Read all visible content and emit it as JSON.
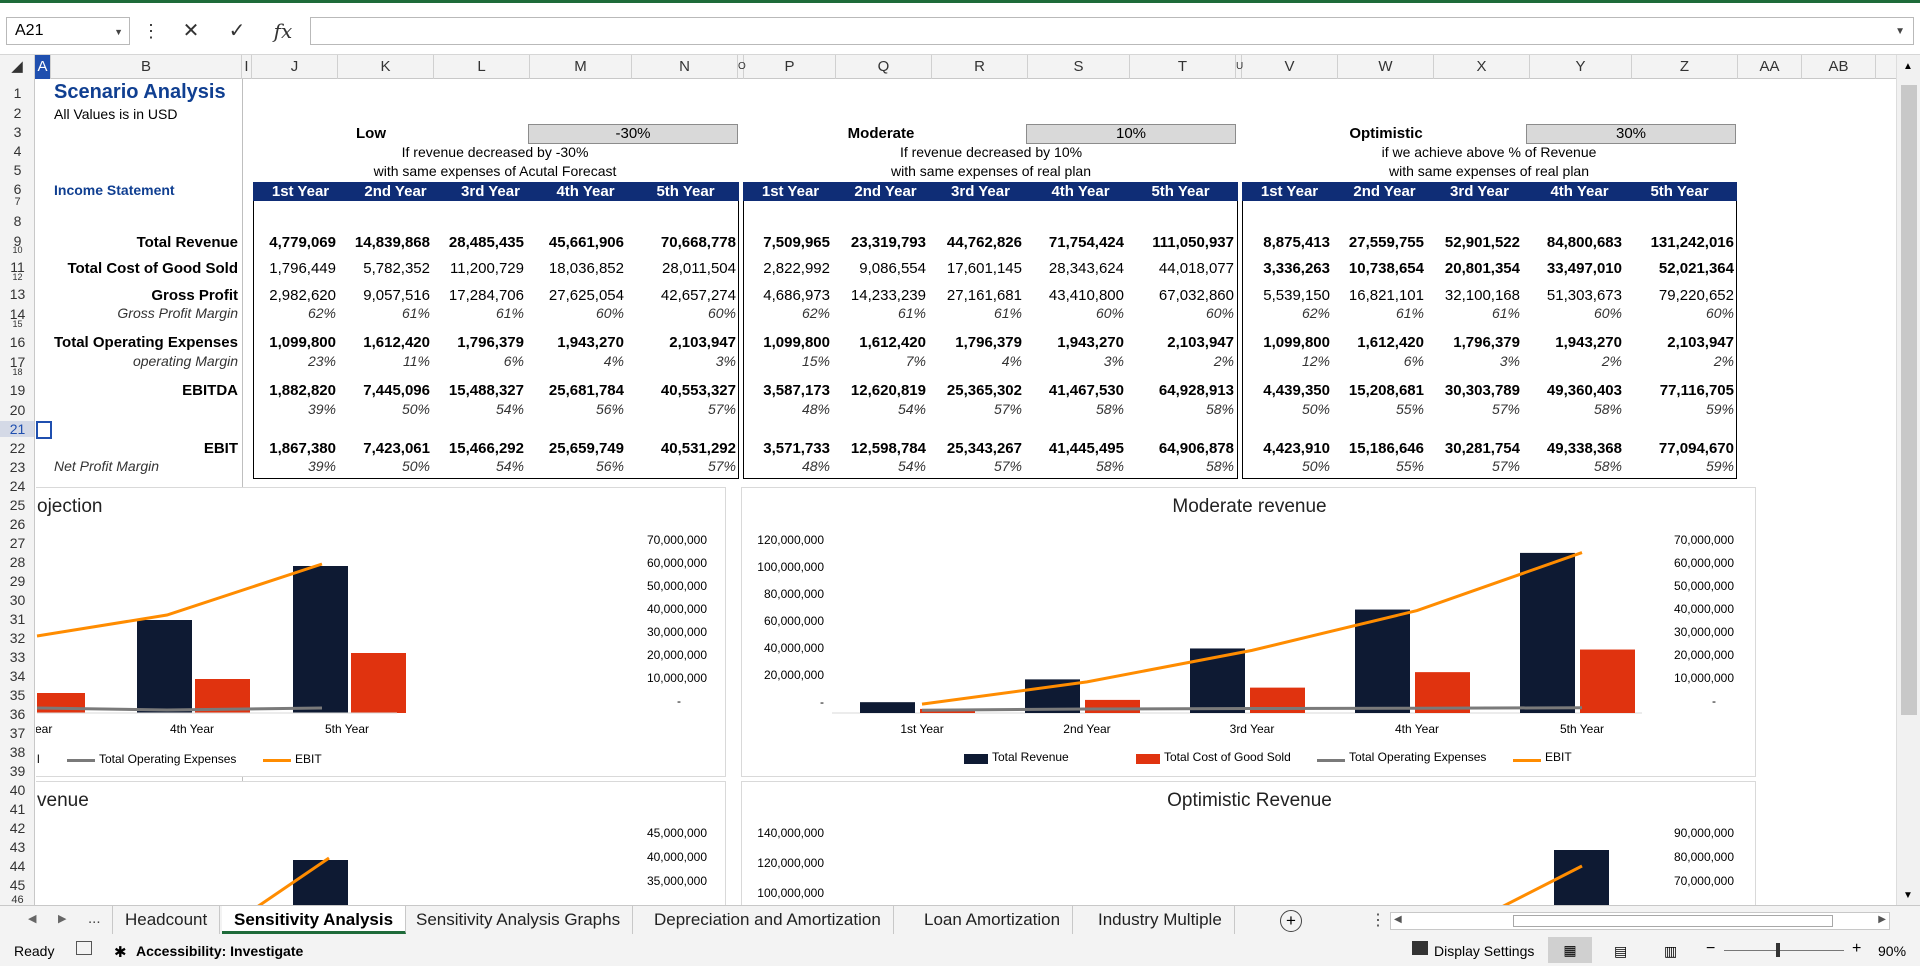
{
  "formula_bar": {
    "name_box": "A21",
    "cancel_icon": "✕",
    "enter_icon": "✓",
    "fx_label": "fx",
    "formula": ""
  },
  "columns": [
    "A",
    "B",
    "I",
    "J",
    "K",
    "L",
    "M",
    "N",
    "O",
    "P",
    "Q",
    "R",
    "S",
    "T",
    "U",
    "V",
    "W",
    "X",
    "Y",
    "Z",
    "AA",
    "AB"
  ],
  "rows": [
    "1",
    "2",
    "3",
    "4",
    "5",
    "6",
    "7",
    "8",
    "9",
    "10",
    "11",
    "12",
    "13",
    "14",
    "15",
    "16",
    "17",
    "18",
    "19",
    "20",
    "21",
    "22",
    "23",
    "24",
    "25",
    "26",
    "27",
    "28",
    "29",
    "30",
    "31",
    "32",
    "33",
    "34",
    "35",
    "36",
    "37",
    "38",
    "39",
    "40",
    "41",
    "42",
    "43",
    "44",
    "45",
    "46"
  ],
  "sheet": {
    "title": "Scenario Analysis",
    "subtitle": "All Values is in USD",
    "section_label": "Income Statement",
    "scenarios": [
      {
        "name": "Low",
        "pct": "-30%",
        "desc1": "If revenue decreased by -30%",
        "desc2": "with same expenses of Acutal Forecast"
      },
      {
        "name": "Moderate",
        "pct": "10%",
        "desc1": "If revenue decreased by 10%",
        "desc2": "with same expenses of real plan"
      },
      {
        "name": "Optimistic",
        "pct": "30%",
        "desc1": "if we achieve above % of Revenue",
        "desc2": "with same expenses of real plan"
      }
    ],
    "year_headers": [
      "1st Year",
      "2nd Year",
      "3rd Year",
      "4th Year",
      "5th Year"
    ],
    "row_labels": {
      "total_revenue": "Total Revenue",
      "cogs": "Total Cost of Good Sold",
      "gross_profit": "Gross Profit",
      "gross_margin": "Gross Profit Margin",
      "opex": "Total Operating Expenses",
      "op_margin": "operating Margin",
      "ebitda": "EBITDA",
      "ebit": "EBIT",
      "net_margin": "Net Profit Margin"
    },
    "low": {
      "total_revenue": [
        "4,779,069",
        "14,839,868",
        "28,485,435",
        "45,661,906",
        "70,668,778"
      ],
      "cogs": [
        "1,796,449",
        "5,782,352",
        "11,200,729",
        "18,036,852",
        "28,011,504"
      ],
      "gross_profit": [
        "2,982,620",
        "9,057,516",
        "17,284,706",
        "27,625,054",
        "42,657,274"
      ],
      "gross_margin": [
        "62%",
        "61%",
        "61%",
        "60%",
        "60%"
      ],
      "opex": [
        "1,099,800",
        "1,612,420",
        "1,796,379",
        "1,943,270",
        "2,103,947"
      ],
      "op_margin": [
        "23%",
        "11%",
        "6%",
        "4%",
        "3%"
      ],
      "ebitda": [
        "1,882,820",
        "7,445,096",
        "15,488,327",
        "25,681,784",
        "40,553,327"
      ],
      "ebitda_margin": [
        "39%",
        "50%",
        "54%",
        "56%",
        "57%"
      ],
      "ebit": [
        "1,867,380",
        "7,423,061",
        "15,466,292",
        "25,659,749",
        "40,531,292"
      ],
      "net_margin": [
        "39%",
        "50%",
        "54%",
        "56%",
        "57%"
      ]
    },
    "moderate": {
      "total_revenue": [
        "7,509,965",
        "23,319,793",
        "44,762,826",
        "71,754,424",
        "111,050,937"
      ],
      "cogs": [
        "2,822,992",
        "9,086,554",
        "17,601,145",
        "28,343,624",
        "44,018,077"
      ],
      "gross_profit": [
        "4,686,973",
        "14,233,239",
        "27,161,681",
        "43,410,800",
        "67,032,860"
      ],
      "gross_margin": [
        "62%",
        "61%",
        "61%",
        "60%",
        "60%"
      ],
      "opex": [
        "1,099,800",
        "1,612,420",
        "1,796,379",
        "1,943,270",
        "2,103,947"
      ],
      "op_margin": [
        "15%",
        "7%",
        "4%",
        "3%",
        "2%"
      ],
      "ebitda": [
        "3,587,173",
        "12,620,819",
        "25,365,302",
        "41,467,530",
        "64,928,913"
      ],
      "ebitda_margin": [
        "48%",
        "54%",
        "57%",
        "58%",
        "58%"
      ],
      "ebit": [
        "3,571,733",
        "12,598,784",
        "25,343,267",
        "41,445,495",
        "64,906,878"
      ],
      "net_margin": [
        "48%",
        "54%",
        "57%",
        "58%",
        "58%"
      ]
    },
    "optimistic": {
      "total_revenue": [
        "8,875,413",
        "27,559,755",
        "52,901,522",
        "84,800,683",
        "131,242,016"
      ],
      "cogs": [
        "3,336,263",
        "10,738,654",
        "20,801,354",
        "33,497,010",
        "52,021,364"
      ],
      "gross_profit": [
        "5,539,150",
        "16,821,101",
        "32,100,168",
        "51,303,673",
        "79,220,652"
      ],
      "gross_margin": [
        "62%",
        "61%",
        "61%",
        "60%",
        "60%"
      ],
      "opex": [
        "1,099,800",
        "1,612,420",
        "1,796,379",
        "1,943,270",
        "2,103,947"
      ],
      "op_margin": [
        "12%",
        "6%",
        "3%",
        "2%",
        "2%"
      ],
      "ebitda": [
        "4,439,350",
        "15,208,681",
        "30,303,789",
        "49,360,403",
        "77,116,705"
      ],
      "ebitda_margin": [
        "50%",
        "55%",
        "57%",
        "58%",
        "59%"
      ],
      "ebit": [
        "4,423,910",
        "15,186,646",
        "30,281,754",
        "49,338,368",
        "77,094,670"
      ],
      "net_margin": [
        "50%",
        "55%",
        "57%",
        "58%",
        "59%"
      ]
    }
  },
  "charts": {
    "low_title": "ojection",
    "moderate_title": "Moderate revenue",
    "low2_title": "venue",
    "optimistic_title": "Optimistic Revenue",
    "legend": [
      "Total Revenue",
      "Total Cost of Good Sold",
      "Total Operating Expenses",
      "EBIT"
    ],
    "low_legend_partial": [
      "l",
      "Total Operating Expenses",
      "EBIT"
    ],
    "low_xcats_partial": [
      "ear",
      "4th Year",
      "5th Year"
    ],
    "xcats": [
      "1st Year",
      "2nd Year",
      "3rd Year",
      "4th Year",
      "5th Year"
    ],
    "low_right_ticks": [
      "70,000,000",
      "60,000,000",
      "50,000,000",
      "40,000,000",
      "30,000,000",
      "20,000,000",
      "10,000,000",
      "-"
    ],
    "moderate_left_ticks": [
      "120,000,000",
      "100,000,000",
      "80,000,000",
      "60,000,000",
      "40,000,000",
      "20,000,000",
      "-"
    ],
    "moderate_right_ticks": [
      "70,000,000",
      "60,000,000",
      "50,000,000",
      "40,000,000",
      "30,000,000",
      "20,000,000",
      "10,000,000",
      "-"
    ],
    "low2_right_ticks": [
      "45,000,000",
      "40,000,000",
      "35,000,000"
    ],
    "optimistic_left_ticks": [
      "140,000,000",
      "120,000,000",
      "100,000,000"
    ],
    "optimistic_right_ticks": [
      "90,000,000",
      "80,000,000",
      "70,000,000"
    ],
    "colors": {
      "revenue": "#0e1a33",
      "cogs": "#e0330f",
      "opex": "#7a7a7a",
      "ebit": "#ff8c00"
    }
  },
  "chart_data": [
    {
      "type": "bar",
      "title": "Moderate revenue",
      "categories": [
        "1st Year",
        "2nd Year",
        "3rd Year",
        "4th Year",
        "5th Year"
      ],
      "series": [
        {
          "name": "Total Revenue",
          "values": [
            7509965,
            23319793,
            44762826,
            71754424,
            111050937
          ]
        },
        {
          "name": "Total Cost of Good Sold",
          "values": [
            2822992,
            9086554,
            17601145,
            28343624,
            44018077
          ]
        },
        {
          "name": "Total Operating Expenses",
          "values": [
            1099800,
            1612420,
            1796379,
            1943270,
            2103947
          ]
        },
        {
          "name": "EBIT",
          "values": [
            3571733,
            12598784,
            25343267,
            41445495,
            64906878
          ]
        }
      ],
      "ylim": [
        0,
        120000000
      ],
      "y2lim": [
        0,
        70000000
      ]
    }
  ],
  "tabs": {
    "items": [
      "Headcount",
      "Sensitivity Analysis",
      "Sensitivity Analysis Graphs",
      "Depreciation and Amortization",
      "Loan Amortization",
      "Industry Multiple"
    ],
    "active": "Sensitivity Analysis",
    "more": "..."
  },
  "status": {
    "ready": "Ready",
    "accessibility": "Accessibility: Investigate",
    "display_settings": "Display Settings",
    "zoom": "90%"
  }
}
